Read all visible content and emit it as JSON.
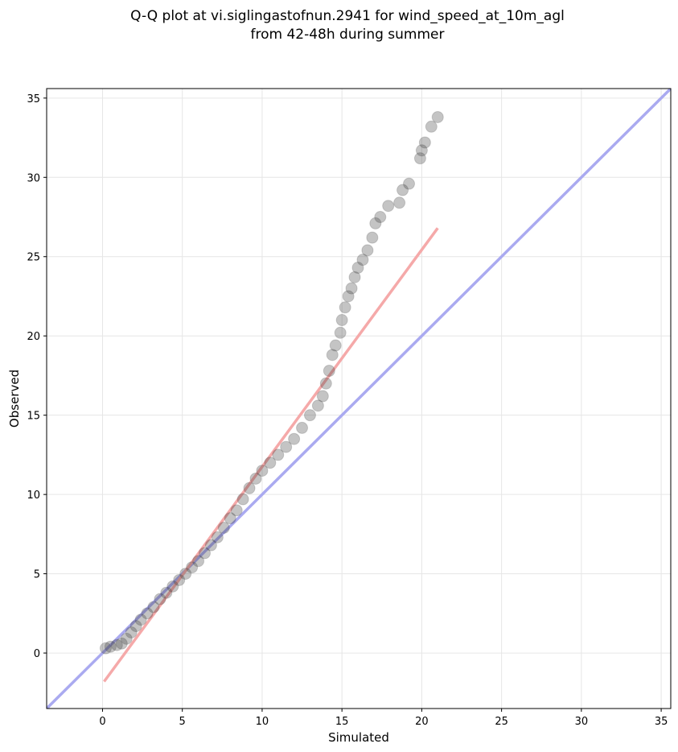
{
  "chart_data": {
    "type": "scatter",
    "title": [
      "Q-Q plot at vi.siglingastofnun.2941 for wind_speed_at_10m_agl",
      "from 42-48h during summer"
    ],
    "x_label": "Simulated",
    "y_label": "Observed",
    "xlim": [
      -3.5,
      35.6
    ],
    "ylim": [
      -3.5,
      35.6
    ],
    "xticks": [
      0,
      5,
      10,
      15,
      20,
      25,
      30,
      35
    ],
    "yticks": [
      0,
      5,
      10,
      15,
      20,
      25,
      30,
      35
    ],
    "grid": true,
    "series": [
      {
        "type": "line",
        "color": "#aaaaf0",
        "x": [
          -3.5,
          35.6
        ],
        "values": [
          -3.5,
          35.6
        ]
      },
      {
        "type": "line",
        "color": "#f5a9a9",
        "x": [
          0.1,
          21.0
        ],
        "values": [
          -1.8,
          26.8
        ]
      },
      {
        "type": "scatter",
        "color": "#3a3a3a",
        "x": [
          0.2,
          0.5,
          0.9,
          1.2,
          1.5,
          1.8,
          2.1,
          2.4,
          2.8,
          3.2,
          3.6,
          4.0,
          4.4,
          4.8,
          5.2,
          5.6,
          6.0,
          6.4,
          6.8,
          7.2,
          7.6,
          8.0,
          8.4,
          8.8,
          9.2,
          9.6,
          10.0,
          10.5,
          11.0,
          11.5,
          12.0,
          12.5,
          13.0,
          13.5,
          13.8,
          14.0,
          14.2,
          14.4,
          14.6,
          14.9,
          15.0,
          15.2,
          15.4,
          15.6,
          15.8,
          16.0,
          16.3,
          16.6,
          16.9,
          17.1,
          17.4,
          17.9,
          18.6,
          18.8,
          19.2,
          19.9,
          20.0,
          20.2,
          20.6,
          21.0
        ],
        "values": [
          0.3,
          0.4,
          0.5,
          0.6,
          0.9,
          1.3,
          1.7,
          2.1,
          2.5,
          2.9,
          3.4,
          3.8,
          4.2,
          4.6,
          5.0,
          5.4,
          5.8,
          6.3,
          6.8,
          7.3,
          7.9,
          8.5,
          9.0,
          9.7,
          10.4,
          11.0,
          11.5,
          12.0,
          12.5,
          13.0,
          13.5,
          14.2,
          15.0,
          15.6,
          16.2,
          17.0,
          17.8,
          18.8,
          19.4,
          20.2,
          21.0,
          21.8,
          22.5,
          23.0,
          23.7,
          24.3,
          24.8,
          25.4,
          26.2,
          27.1,
          27.5,
          28.2,
          28.4,
          29.2,
          29.6,
          31.2,
          31.7,
          32.2,
          33.2,
          33.8
        ]
      }
    ]
  }
}
